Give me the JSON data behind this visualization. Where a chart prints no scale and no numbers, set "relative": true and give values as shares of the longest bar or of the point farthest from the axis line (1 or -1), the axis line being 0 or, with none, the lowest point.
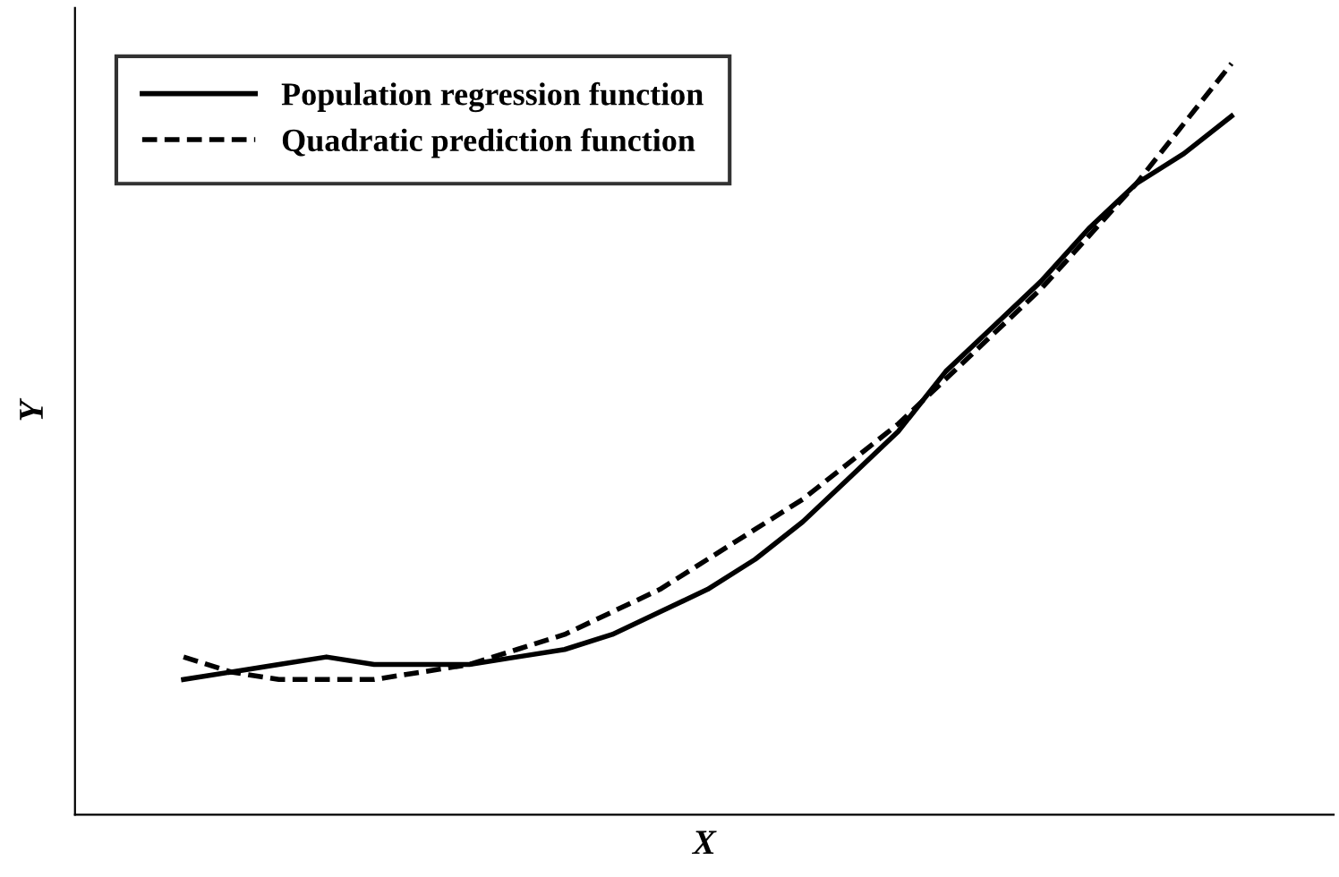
{
  "chart_data": {
    "type": "line",
    "relative": true,
    "xlabel": "X",
    "ylabel": "Y",
    "legend": "top left",
    "categories": [
      null,
      null,
      null,
      null,
      null,
      null,
      null,
      null,
      null,
      null,
      null,
      null,
      null,
      null,
      null,
      null,
      null,
      null,
      null,
      null,
      null,
      null,
      null
    ],
    "series": [
      {
        "name": "Population regression function",
        "color": "#000000",
        "line_style": "solid",
        "values": [
          0.18,
          0.19,
          0.2,
          0.21,
          0.2,
          0.2,
          0.2,
          0.21,
          0.22,
          0.24,
          0.27,
          0.3,
          0.34,
          0.39,
          0.45,
          0.51,
          0.59,
          0.65,
          0.71,
          0.78,
          0.84,
          0.88,
          0.93
        ]
      },
      {
        "name": "Quadratic prediction function",
        "color": "#000000",
        "line_style": "dashed",
        "values": [
          0.21,
          0.19,
          0.18,
          0.18,
          0.18,
          0.19,
          0.2,
          0.22,
          0.24,
          0.27,
          0.3,
          0.34,
          0.38,
          0.42,
          0.47,
          0.52,
          0.58,
          0.64,
          0.7,
          0.77,
          0.84,
          0.92,
          1.0
        ]
      }
    ]
  }
}
